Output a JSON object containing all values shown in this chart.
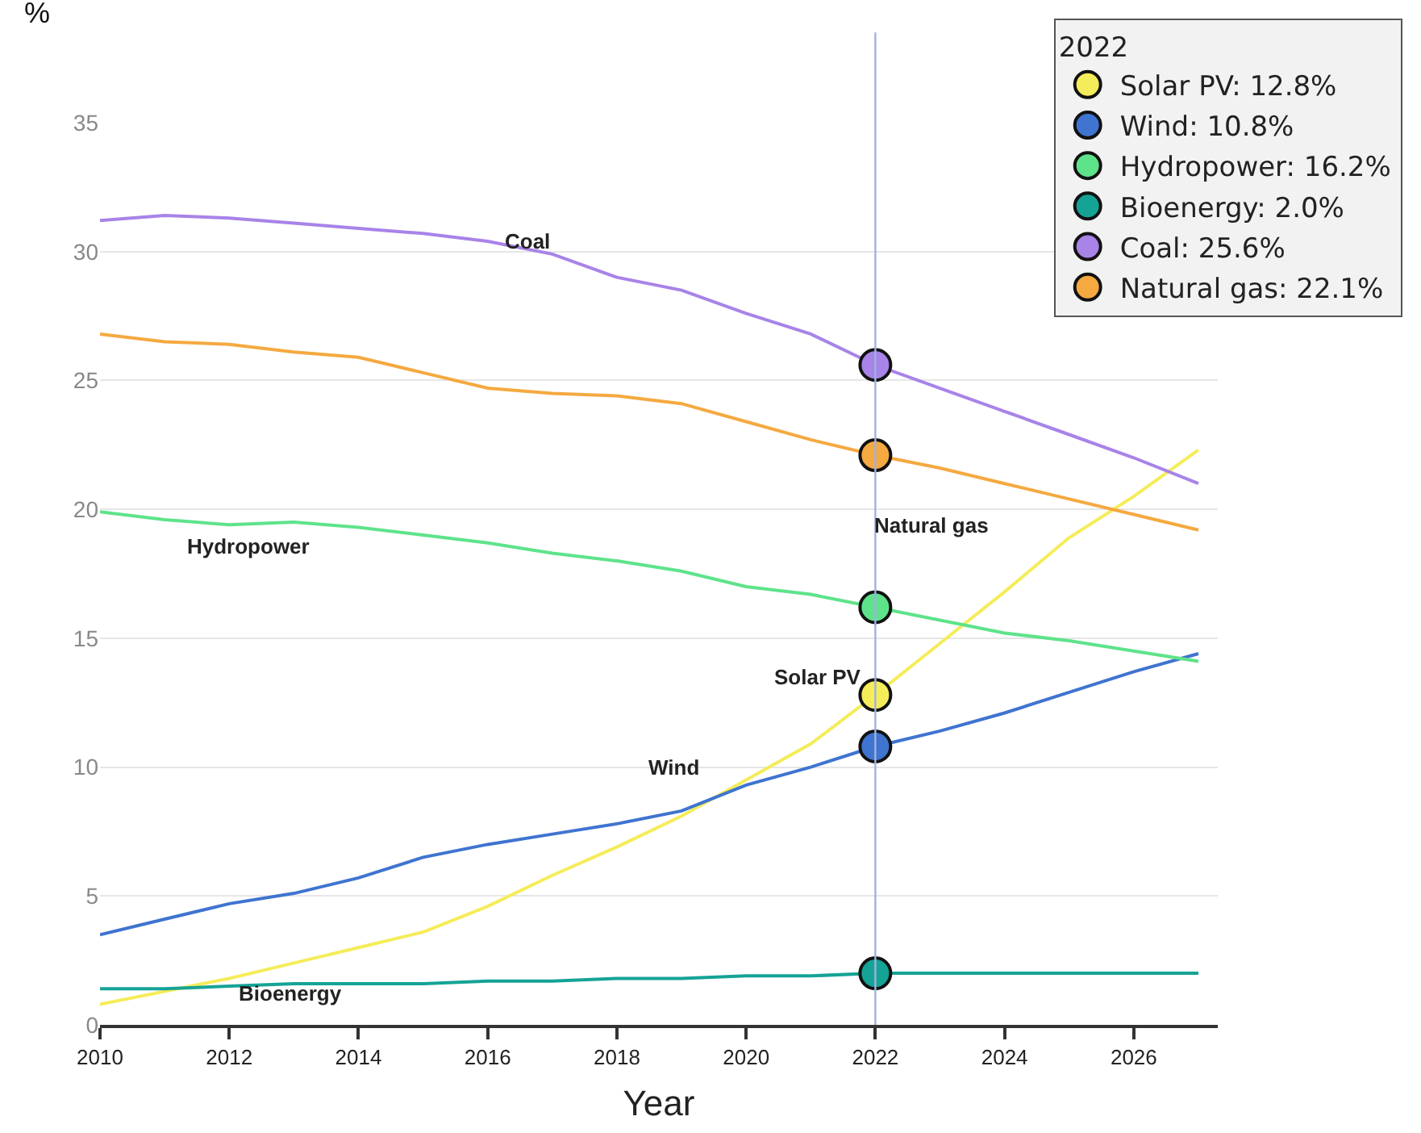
{
  "chart_data": {
    "type": "line",
    "xlabel": "Year",
    "ylabel": "%",
    "legend_title": "2022",
    "x": [
      2010,
      2011,
      2012,
      2013,
      2014,
      2015,
      2016,
      2017,
      2018,
      2019,
      2020,
      2021,
      2022,
      2023,
      2024,
      2025,
      2026,
      2027
    ],
    "series": [
      {
        "name": "Solar PV: 12.8%",
        "color": "#f5ec5a",
        "values": [
          0.8,
          1.3,
          1.8,
          2.4,
          3.0,
          3.6,
          4.6,
          5.8,
          6.9,
          8.1,
          9.5,
          10.9,
          12.8,
          14.8,
          16.8,
          18.9,
          20.5,
          22.3
        ]
      },
      {
        "name": "Wind: 10.8%",
        "color": "#3f74d0",
        "values": [
          3.5,
          4.1,
          4.7,
          5.1,
          5.7,
          6.5,
          7.0,
          7.4,
          7.8,
          8.3,
          9.3,
          10.0,
          10.8,
          11.4,
          12.1,
          12.9,
          13.7,
          14.4
        ]
      },
      {
        "name": "Hydropower: 16.2%",
        "color": "#5ee38a",
        "values": [
          19.9,
          19.6,
          19.4,
          19.5,
          19.3,
          19.0,
          18.7,
          18.3,
          18.0,
          17.6,
          17.0,
          16.7,
          16.2,
          15.7,
          15.2,
          14.9,
          14.5,
          14.1
        ]
      },
      {
        "name": "Bioenergy: 2.0%",
        "color": "#15a396",
        "values": [
          1.4,
          1.4,
          1.5,
          1.6,
          1.6,
          1.6,
          1.7,
          1.7,
          1.8,
          1.8,
          1.9,
          1.9,
          2.0,
          2.0,
          2.0,
          2.0,
          2.0,
          2.0
        ]
      },
      {
        "name": "Coal: 25.6%",
        "color": "#a883e8",
        "values": [
          31.2,
          31.4,
          31.3,
          31.1,
          30.9,
          30.7,
          30.4,
          29.9,
          29.0,
          28.5,
          27.6,
          26.8,
          25.6,
          24.7,
          23.8,
          22.9,
          22.0,
          21.0
        ]
      },
      {
        "name": "Natural gas: 22.1%",
        "color": "#f5a940",
        "values": [
          26.8,
          26.5,
          26.4,
          26.1,
          25.9,
          25.3,
          24.7,
          24.5,
          24.4,
          24.1,
          23.4,
          22.7,
          22.1,
          21.6,
          21.0,
          20.4,
          19.8,
          19.2
        ]
      }
    ],
    "annotations": [
      "Coal",
      "Hydropower",
      "Natural gas",
      "Solar PV",
      "Wind",
      "Bioenergy"
    ],
    "ref_lines": [
      {
        "axis": "x",
        "value": 2022,
        "color": "#9fb3e0"
      }
    ],
    "xlim": [
      2010,
      2027.3
    ],
    "xticks": [
      2010,
      2012,
      2014,
      2016,
      2018,
      2020,
      2022,
      2024,
      2026
    ],
    "ylim": [
      0,
      35
    ],
    "yticks": [
      0,
      5,
      10,
      15,
      20,
      25,
      30,
      35
    ],
    "grid": "y",
    "legend": "top right"
  }
}
